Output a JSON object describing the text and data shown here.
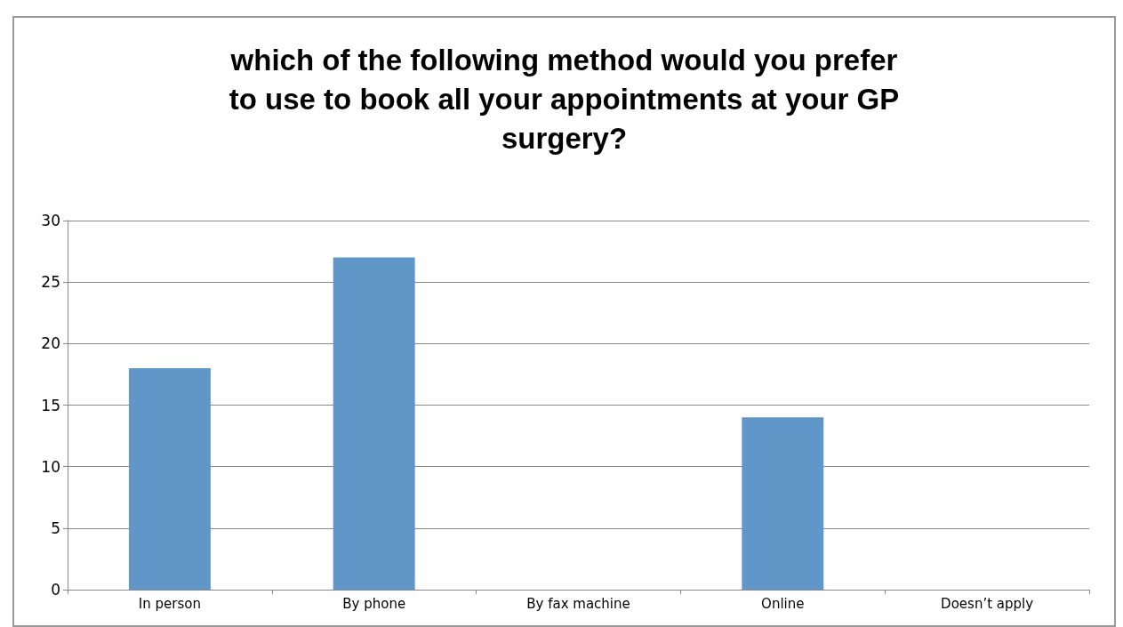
{
  "chart_data": {
    "type": "bar",
    "title": "which of the following method would you prefer\nto use to book all your appointments at your GP\nsurgery?",
    "categories": [
      "In person",
      "By phone",
      "By fax machine",
      "Online",
      "Doesn’t apply"
    ],
    "values": [
      18,
      27,
      0,
      14,
      0
    ],
    "color": "#6096c8",
    "ylim": [
      0,
      30
    ],
    "yticks": [
      0,
      5,
      10,
      15,
      20,
      25,
      30
    ],
    "grid": "y"
  }
}
